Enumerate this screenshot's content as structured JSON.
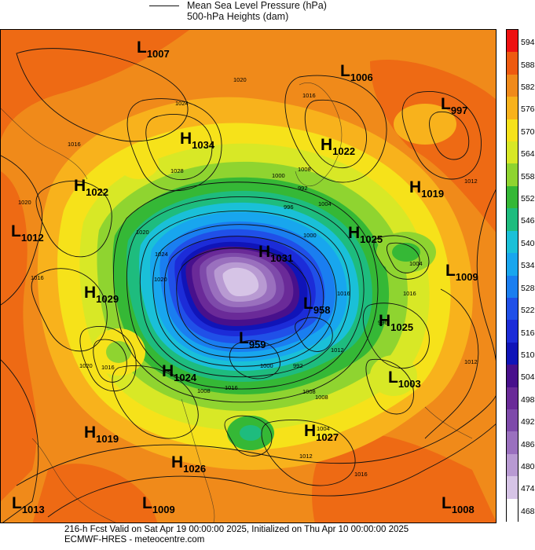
{
  "legend": {
    "line1": "Mean Sea Level Pressure (hPa)",
    "line2": "500-hPa Heights (dam)"
  },
  "colorbar": {
    "levels": [
      "594",
      "588",
      "582",
      "576",
      "570",
      "564",
      "558",
      "552",
      "546",
      "540",
      "534",
      "528",
      "522",
      "516",
      "510",
      "504",
      "498",
      "492",
      "486",
      "480",
      "474",
      "468"
    ],
    "colors": [
      "#ee1111",
      "#ee5a10",
      "#f08a1a",
      "#f8b21c",
      "#f6e21a",
      "#d8e826",
      "#8fd430",
      "#35b836",
      "#1ebc7e",
      "#1ac0d8",
      "#18a6ee",
      "#1a7ef0",
      "#2050e8",
      "#1c2cd8",
      "#1014b8",
      "#48108c",
      "#6a2a98",
      "#7e4aaa",
      "#9a70be",
      "#b89ad2",
      "#d6c4e6",
      "#ffffff"
    ]
  },
  "centers": [
    {
      "type": "L",
      "value": "1007"
    },
    {
      "type": "L",
      "value": "1006"
    },
    {
      "type": "L",
      "value": "997"
    },
    {
      "type": "H",
      "value": "1034"
    },
    {
      "type": "H",
      "value": "1022"
    },
    {
      "type": "H",
      "value": "1022"
    },
    {
      "type": "H",
      "value": "1019"
    },
    {
      "type": "L",
      "value": "1012"
    },
    {
      "type": "H",
      "value": "1025"
    },
    {
      "type": "H",
      "value": "1031"
    },
    {
      "type": "L",
      "value": "1009"
    },
    {
      "type": "H",
      "value": "1029"
    },
    {
      "type": "L",
      "value": "958"
    },
    {
      "type": "H",
      "value": "1025"
    },
    {
      "type": "L",
      "value": "959"
    },
    {
      "type": "H",
      "value": "1024"
    },
    {
      "type": "L",
      "value": "1003"
    },
    {
      "type": "H",
      "value": "1019"
    },
    {
      "type": "H",
      "value": "1027"
    },
    {
      "type": "H",
      "value": "1026"
    },
    {
      "type": "L",
      "value": "1013"
    },
    {
      "type": "L",
      "value": "1009"
    },
    {
      "type": "L",
      "value": "1008"
    }
  ],
  "isobar_labels": [
    "1020",
    "1016",
    "1024",
    "1016",
    "1012",
    "1008",
    "1020",
    "1028",
    "1020",
    "1024",
    "1016",
    "1000",
    "992",
    "996",
    "1004",
    "1000",
    "1020",
    "1016",
    "1008",
    "1016",
    "1012",
    "1004",
    "996",
    "992",
    "1000",
    "1008",
    "1016",
    "1012",
    "1004",
    "1008",
    "1016",
    "1020",
    "1012",
    "1016"
  ],
  "footer": {
    "line1": "216-h Fcst Valid on Sat Apr 19 00:00:00 2025, Initialized on Thu Apr 10 00:00:00 2025",
    "line2": "ECMWF-HRES  - meteocentre.com"
  }
}
